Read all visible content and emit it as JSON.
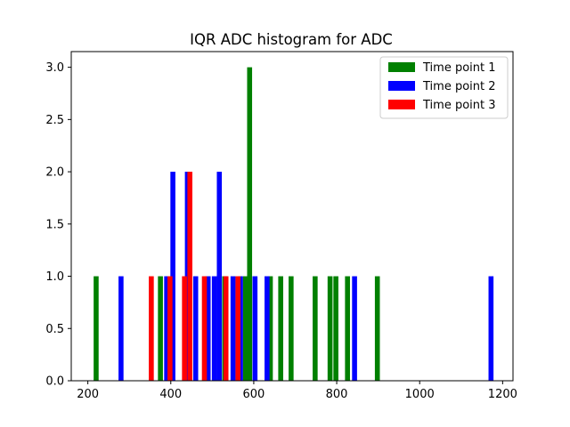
{
  "chart_data": {
    "type": "bar",
    "title": "IQR ADC histogram for ADC",
    "xlabel": "",
    "ylabel": "",
    "xlim": [
      160,
      1225
    ],
    "ylim": [
      0,
      3.15
    ],
    "xticks": [
      200,
      400,
      600,
      800,
      1000,
      1200
    ],
    "yticks": [
      0.0,
      0.5,
      1.0,
      1.5,
      2.0,
      2.5,
      3.0
    ],
    "bin_width": 12,
    "legend_position": "top-right",
    "grid": false,
    "series": [
      {
        "name": "Time point 1",
        "color": "#008000",
        "bins": [
          {
            "x": 220,
            "count": 1
          },
          {
            "x": 375,
            "count": 1
          },
          {
            "x": 530,
            "count": 1
          },
          {
            "x": 580,
            "count": 1
          },
          {
            "x": 590,
            "count": 3
          },
          {
            "x": 640,
            "count": 1
          },
          {
            "x": 665,
            "count": 1
          },
          {
            "x": 690,
            "count": 1
          },
          {
            "x": 748,
            "count": 1
          },
          {
            "x": 784,
            "count": 1
          },
          {
            "x": 798,
            "count": 1
          },
          {
            "x": 826,
            "count": 1
          },
          {
            "x": 898,
            "count": 1
          }
        ]
      },
      {
        "name": "Time point 2",
        "color": "#0000ff",
        "bins": [
          {
            "x": 280,
            "count": 1
          },
          {
            "x": 390,
            "count": 1
          },
          {
            "x": 405,
            "count": 2
          },
          {
            "x": 440,
            "count": 2
          },
          {
            "x": 460,
            "count": 1
          },
          {
            "x": 490,
            "count": 1
          },
          {
            "x": 505,
            "count": 1
          },
          {
            "x": 517,
            "count": 2
          },
          {
            "x": 550,
            "count": 1
          },
          {
            "x": 568,
            "count": 1
          },
          {
            "x": 603,
            "count": 1
          },
          {
            "x": 632,
            "count": 1
          },
          {
            "x": 843,
            "count": 1
          },
          {
            "x": 1172,
            "count": 1
          }
        ]
      },
      {
        "name": "Time point 3",
        "color": "#ff0000",
        "bins": [
          {
            "x": 353,
            "count": 1
          },
          {
            "x": 398,
            "count": 1
          },
          {
            "x": 433,
            "count": 1
          },
          {
            "x": 446,
            "count": 2
          },
          {
            "x": 481,
            "count": 1
          },
          {
            "x": 533,
            "count": 1
          },
          {
            "x": 562,
            "count": 1
          }
        ]
      }
    ]
  }
}
